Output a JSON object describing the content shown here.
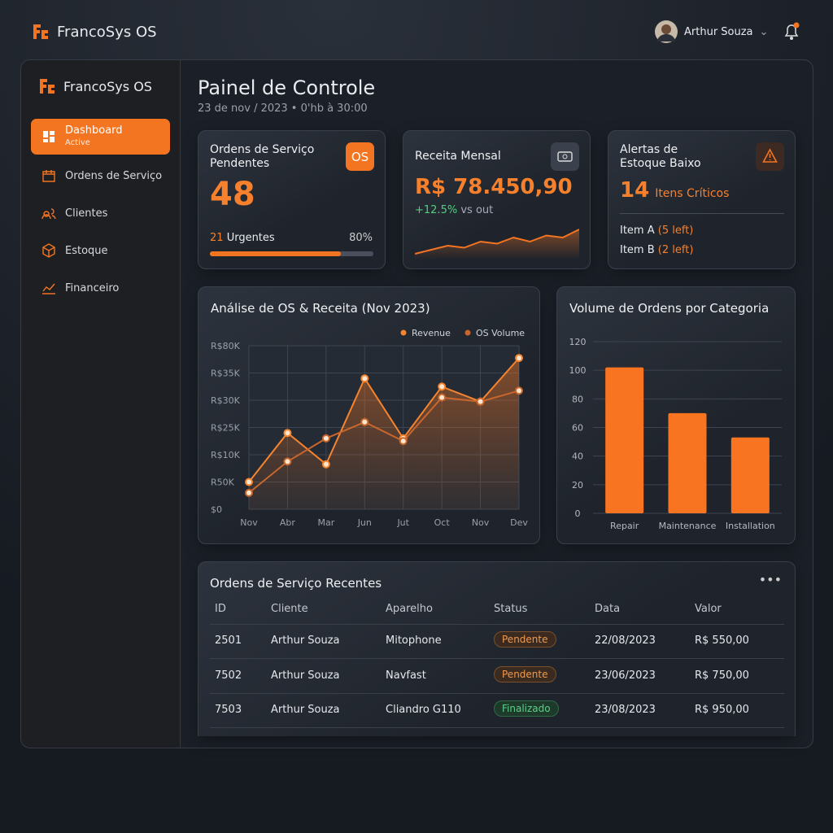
{
  "topbar": {
    "brand": "FrancoSys OS",
    "user": "Arthur Souza"
  },
  "sidebar": {
    "brand": "FrancoSys OS",
    "nav": [
      {
        "label": "Dashboard",
        "sub": "Active"
      },
      {
        "label": "Ordens de Serviço"
      },
      {
        "label": "Clientes"
      },
      {
        "label": "Estoque"
      },
      {
        "label": "Financeiro"
      }
    ]
  },
  "header": {
    "title": "Painel de Controle",
    "subtitle": "23 de nov / 2023 • 0'hb à 30:00"
  },
  "cards": {
    "pending": {
      "title": "Ordens de Serviço Pendentes",
      "badge": "OS",
      "value": 48,
      "urgent_count": 21,
      "urgent_label": "Urgentes",
      "progress": 80,
      "progress_label": "80%"
    },
    "revenue": {
      "title": "Receita Mensal",
      "value": "R$ 78.450,90",
      "change": "+12.5%",
      "change_suffix": "vs out",
      "sparkline": {
        "values": [
          1,
          2,
          3,
          2.5,
          4,
          3.5,
          5,
          4,
          5.5,
          5,
          7
        ],
        "ylim": [
          0,
          8
        ]
      }
    },
    "alerts": {
      "title": "Alertas de Estoque Baixo",
      "count": 14,
      "count_label": "Itens Críticos",
      "items": [
        {
          "name": "Item A",
          "detail": "(5 left)"
        },
        {
          "name": "Item B",
          "detail": "(2 left)"
        }
      ]
    }
  },
  "chart_data": [
    {
      "type": "line",
      "title": "Análise de OS & Receita (Nov 2023)",
      "categories": [
        "Nov",
        "Abr",
        "Mar",
        "Jun",
        "Jut",
        "Oct",
        "Nov",
        "Dev"
      ],
      "y_labels": [
        "$0",
        "R50K",
        "R$10K",
        "R$25K",
        "R$30K",
        "R$35K",
        "R$80K"
      ],
      "ylim": [
        0,
        6
      ],
      "yticks": [
        0,
        1,
        2,
        3,
        4,
        5,
        6
      ],
      "grid": true,
      "series": [
        {
          "name": "Revenue",
          "color": "#f5842f",
          "values": [
            1.0,
            2.8,
            1.65,
            4.8,
            2.6,
            4.5,
            3.95,
            5.55
          ]
        },
        {
          "name": "OS Volume",
          "color": "#c9662c",
          "values": [
            0.6,
            1.75,
            2.6,
            3.2,
            2.5,
            4.1,
            3.95,
            4.35
          ]
        }
      ]
    },
    {
      "type": "bar",
      "title": "Volume de Ordens por Categoria",
      "categories": [
        "Repair",
        "Maintenance",
        "Installation"
      ],
      "values": [
        102,
        70,
        53
      ],
      "color": "#f97420",
      "ylim": [
        0,
        120
      ],
      "yticks": [
        0,
        20,
        40,
        60,
        80,
        100,
        120
      ],
      "grid": true
    }
  ],
  "table": {
    "title": "Ordens de Serviço Recentes",
    "columns": [
      "ID",
      "Cliente",
      "Aparelho",
      "Status",
      "Data",
      "Valor"
    ],
    "rows": [
      [
        "2501",
        "Arthur Souza",
        "Mitophone",
        "Pendente",
        "22/08/2023",
        "R$ 550,00"
      ],
      [
        "7502",
        "Arthur Souza",
        "Navfast",
        "Pendente",
        "23/06/2023",
        "R$ 750,00"
      ],
      [
        "7503",
        "Arthur Souza",
        "Cliandro G110",
        "Finalizado",
        "23/08/2023",
        "R$ 950,00"
      ]
    ]
  }
}
